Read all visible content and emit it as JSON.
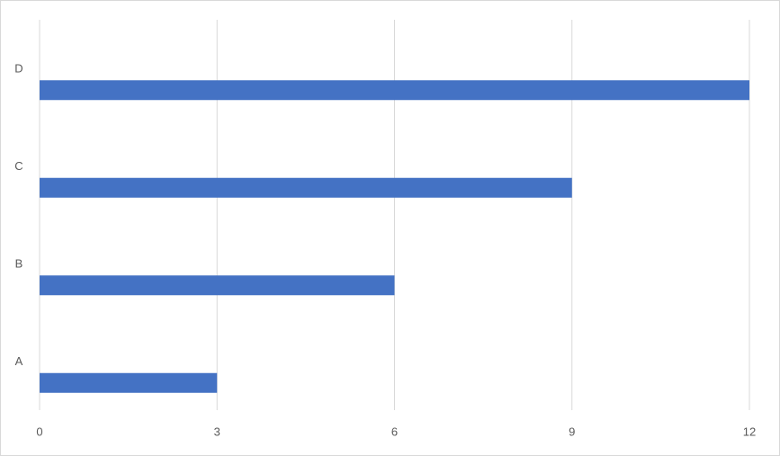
{
  "chart_data": {
    "type": "bar",
    "orientation": "horizontal",
    "categories": [
      "A",
      "B",
      "C",
      "D"
    ],
    "values": [
      3,
      6,
      9,
      12
    ],
    "color": "#4472c4",
    "xlim": [
      0,
      12
    ],
    "xticks": [
      0,
      3,
      6,
      9,
      12
    ],
    "grid": true
  }
}
